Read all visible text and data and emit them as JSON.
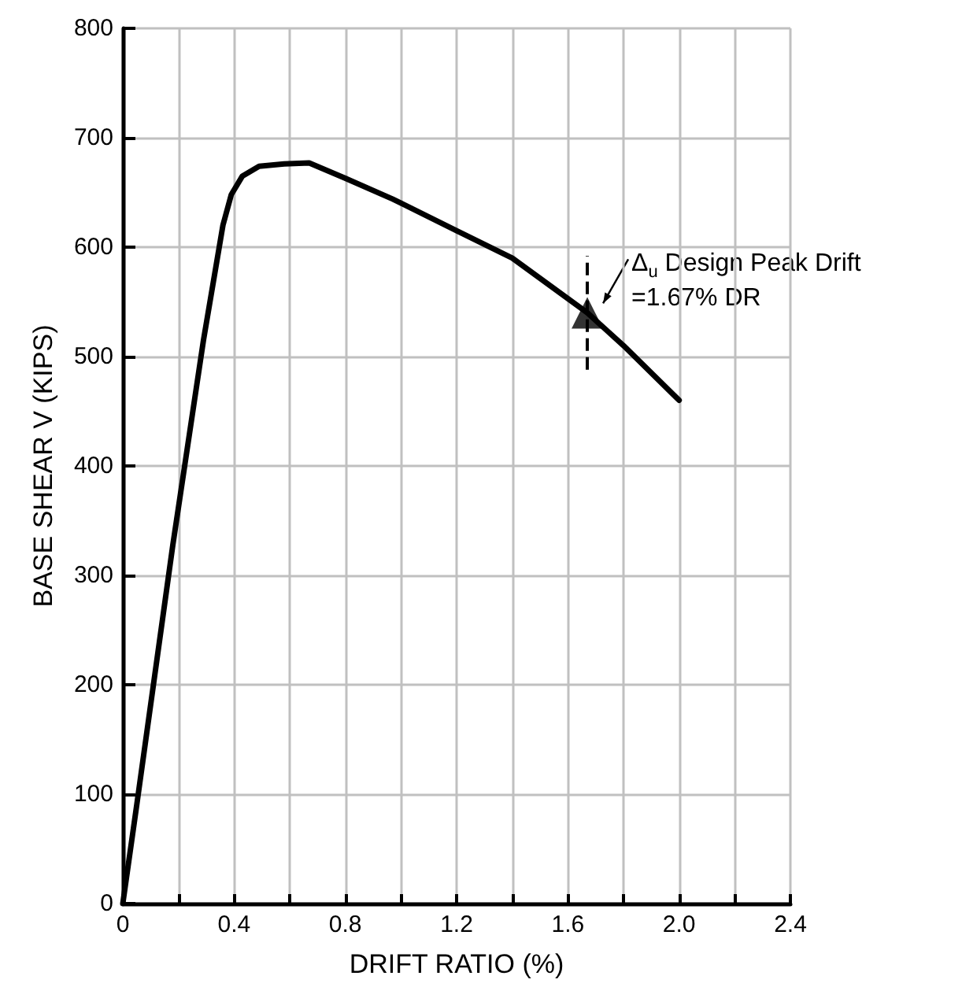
{
  "chart_data": {
    "type": "line",
    "xlabel": "DRIFT RATIO (%)",
    "ylabel": "BASE SHEAR V (KIPS)",
    "x": [
      0,
      0.05,
      0.18,
      0.29,
      0.36,
      0.39,
      0.43,
      0.49,
      0.58,
      0.67,
      0.8,
      0.97,
      1.2,
      1.4,
      1.67,
      1.8,
      2.0
    ],
    "series": [
      {
        "color": "#000000",
        "values": [
          0,
          90,
          328,
          515,
          620,
          648,
          665,
          674,
          676,
          677,
          663,
          644,
          615,
          590,
          540,
          510,
          460
        ]
      },
      {
        "type": "scatter",
        "marker": "triangle",
        "color": "#000000",
        "x": [
          1.67
        ],
        "values": [
          540
        ]
      }
    ],
    "xlim": [
      0,
      2.4
    ],
    "xticks": [
      0,
      {
        "value": 0.2,
        "label": null
      },
      0.4,
      {
        "value": 0.6,
        "label": null
      },
      0.8,
      {
        "value": 1.0,
        "label": null
      },
      1.2,
      {
        "value": 1.4,
        "label": null
      },
      1.6,
      {
        "value": 1.8,
        "label": null
      },
      "2.0",
      {
        "value": 2.2,
        "label": null
      },
      2.4
    ],
    "ylim": [
      0,
      800
    ],
    "yticks": [
      0,
      100,
      200,
      300,
      400,
      500,
      600,
      700,
      800
    ],
    "grid": true,
    "marker": "none",
    "line_style": "solid",
    "ref_lines": [
      {
        "axis": "x",
        "value": 1.67,
        "line_style": "dashed",
        "color": "#000000"
      }
    ],
    "annotations": [
      {
        "text": "Δ$_{u}$ Design Peak Drift\n=1.67% DR",
        "x": 1.67,
        "y": 540
      }
    ]
  }
}
